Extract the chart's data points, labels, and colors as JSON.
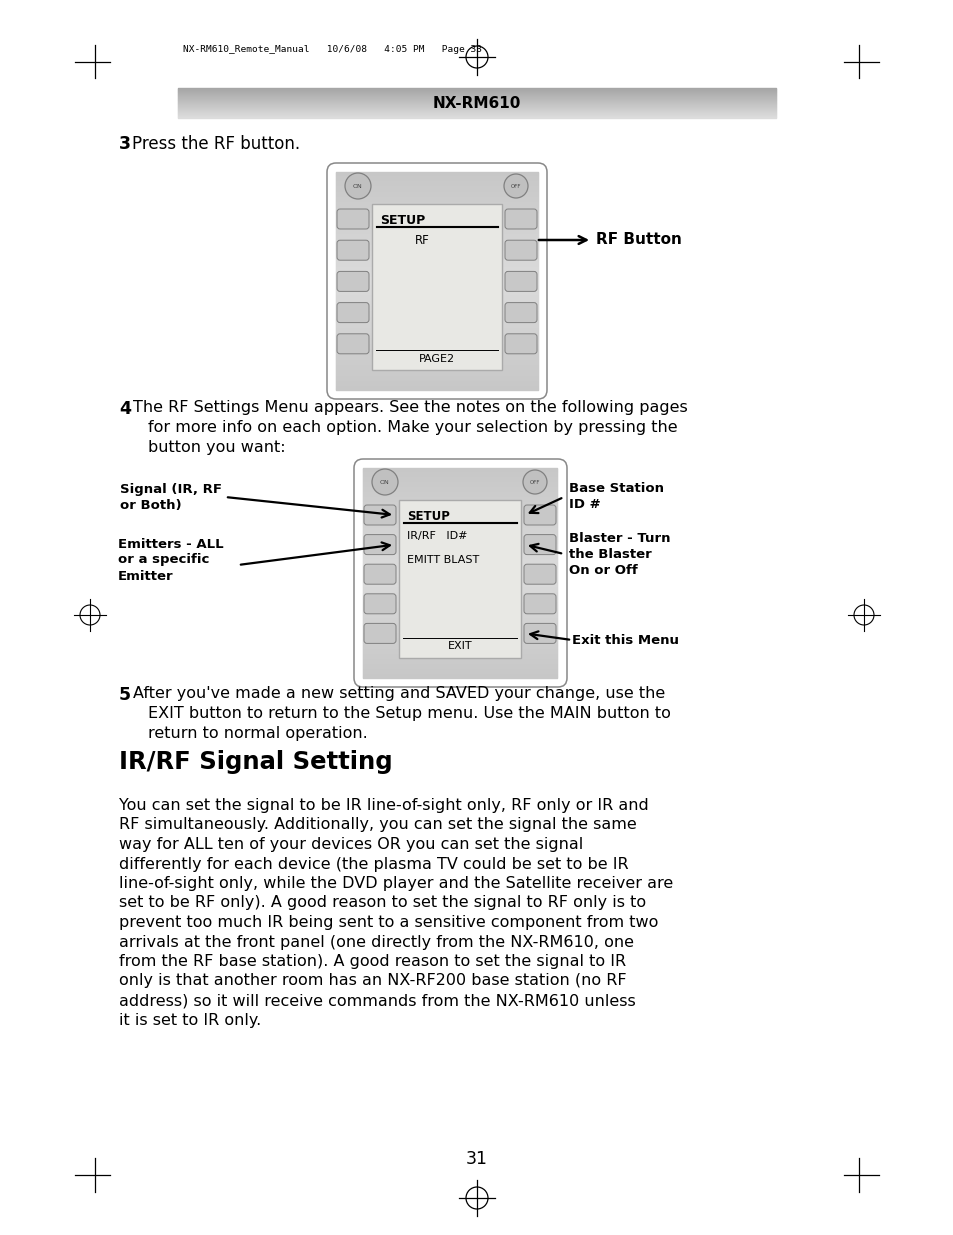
{
  "bg_color": "#ffffff",
  "header_text": "NX-RM610",
  "top_meta_text": "NX-RM610_Remote_Manual   10/6/08   4:05 PM   Page 33",
  "step3_bold": "3",
  "step3_text": "Press the RF button.",
  "step4_bold": "4",
  "step4_lines": [
    "The RF Settings Menu appears. See the notes on the following pages",
    "for more info on each option. Make your selection by pressing the",
    "button you want:"
  ],
  "step5_bold": "5",
  "step5_lines": [
    "After you've made a new setting and SAVED your change, use the",
    "EXIT button to return to the Setup menu. Use the MAIN button to",
    "return to normal operation."
  ],
  "section_title": "IR/RF Signal Setting",
  "body_lines": [
    "You can set the signal to be IR line-of-sight only, RF only or IR and",
    "RF simultaneously. Additionally, you can set the signal the same",
    "way for ALL ten of your devices OR you can set the signal",
    "differently for each device (the plasma TV could be set to be IR",
    "line-of-sight only, while the DVD player and the Satellite receiver are",
    "set to be RF only). A good reason to set the signal to RF only is to",
    "prevent too much IR being sent to a sensitive component from two",
    "arrivals at the front panel (one directly from the NX-RM610, one",
    "from the RF base station). A good reason to set the signal to IR",
    "only is that another room has an NX-RF200 base station (no RF",
    "address) so it will receive commands from the NX-RM610 unless",
    "it is set to IR only."
  ],
  "page_number": "31",
  "rf_button_label": "RF Button",
  "label_signal": "Signal (IR, RF\nor Both)",
  "label_base": "Base Station\nID #",
  "label_emitters": "Emitters - ALL\nor a specific\nEmitter",
  "label_blaster": "Blaster - Turn\nthe Blaster\nOn or Off",
  "label_exit_menu": "Exit this Menu",
  "remote_body_color": "#d0d0d0",
  "remote_body_light": "#e0e0e0",
  "remote_screen_color": "#e8e8e4",
  "remote_button_color": "#b8b8b8",
  "remote_btn_face": "#c8c8c8",
  "remote_edge_color": "#999999"
}
